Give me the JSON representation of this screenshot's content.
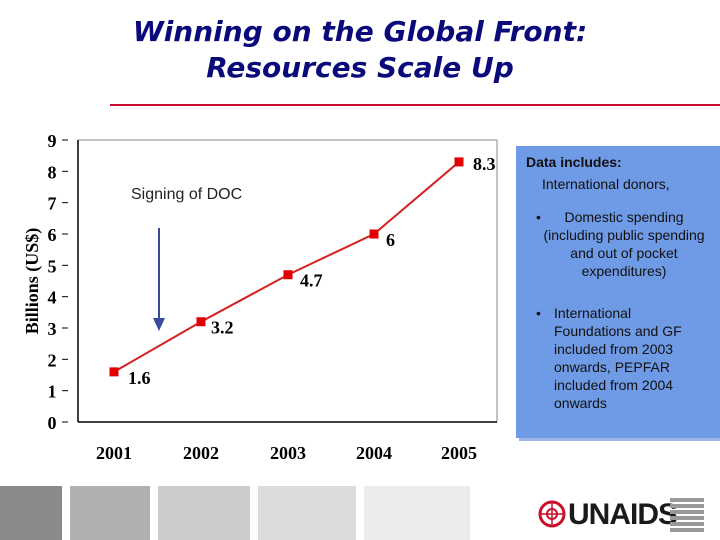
{
  "slide": {
    "title_line1": "Winning on the Global Front:",
    "title_line2": "Resources Scale Up",
    "annotation": "Signing of DOC",
    "box_title": "Data includes:",
    "box_subtitle": "International donors,",
    "bullet_symbol": "•",
    "bullet1": "Domestic spending (including public spending and out of pocket expenditures)",
    "bullet2": "International Foundations and GF included from 2003 onwards, PEPFAR included from 2004 onwards",
    "logo_text": "UNAIDS"
  },
  "chart_data": {
    "type": "line",
    "title": "",
    "xlabel": "",
    "ylabel": "Billions (US$)",
    "x": [
      "2001",
      "2002",
      "2003",
      "2004",
      "2005"
    ],
    "series": [
      {
        "values": [
          1.6,
          3.2,
          4.7,
          6,
          8.3
        ],
        "labels": [
          "1.6",
          "3.2",
          "4.7",
          "6",
          "8.3"
        ]
      }
    ],
    "y_ticks": [
      "0",
      "1",
      "2",
      "3",
      "4",
      "5",
      "6",
      "7",
      "8",
      "9"
    ],
    "ylim": [
      0,
      9
    ],
    "grid": false,
    "legend": "none",
    "colors": {
      "line": "#d42020",
      "marker": "#e00000",
      "plot_border": "#888888"
    }
  },
  "colors": {
    "title": "#0a0a7a",
    "box": "#6f9ae6",
    "rule": "#c8102e"
  }
}
